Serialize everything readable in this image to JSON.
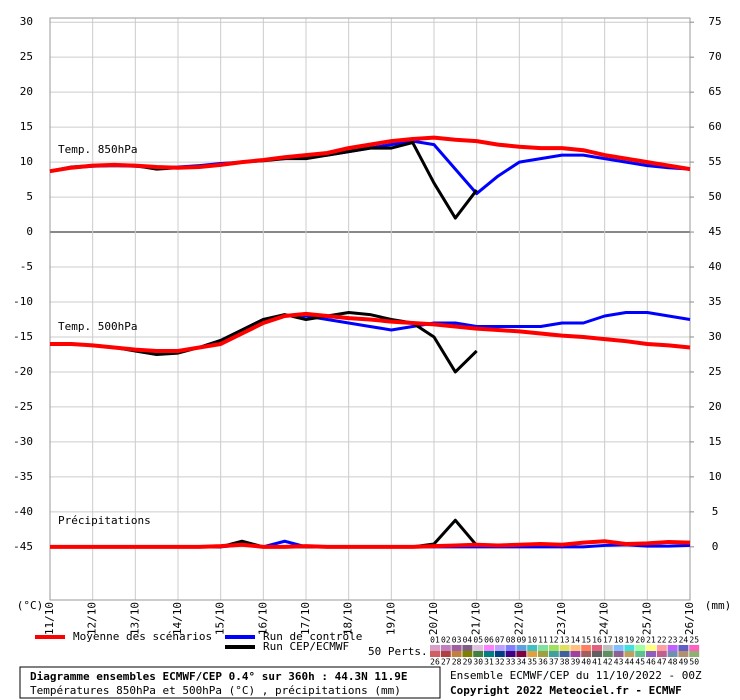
{
  "chart_data": {
    "type": "line",
    "x": [
      0,
      12,
      24,
      36,
      48,
      60,
      72,
      84,
      96,
      108,
      120,
      132,
      144,
      156,
      168,
      180,
      192,
      204,
      216,
      228,
      240,
      252,
      264,
      276,
      288,
      300,
      312,
      324,
      336,
      348,
      360
    ],
    "xlim": [
      0,
      360
    ],
    "xticks": [
      {
        "value": 0,
        "label": "11/10"
      },
      {
        "value": 24,
        "label": "12/10"
      },
      {
        "value": 48,
        "label": "13/10"
      },
      {
        "value": 72,
        "label": "14/10"
      },
      {
        "value": 96,
        "label": "15/10"
      },
      {
        "value": 120,
        "label": "16/10"
      },
      {
        "value": 144,
        "label": "17/10"
      },
      {
        "value": 168,
        "label": "18/10"
      },
      {
        "value": 192,
        "label": "19/10"
      },
      {
        "value": 216,
        "label": "20/10"
      },
      {
        "value": 240,
        "label": "21/10"
      },
      {
        "value": 264,
        "label": "22/10"
      },
      {
        "value": 288,
        "label": "23/10"
      },
      {
        "value": 312,
        "label": "24/10"
      },
      {
        "value": 336,
        "label": "25/10"
      },
      {
        "value": 360,
        "label": "26/10"
      }
    ],
    "ylim": [
      -52.6,
      30.6
    ],
    "yticks": [
      30,
      25,
      20,
      15,
      10,
      5,
      0,
      -5,
      -10,
      -15,
      -20,
      -25,
      -30,
      -35,
      -40,
      -45
    ],
    "y2lim": [
      -7.6,
      75.6
    ],
    "y2ticks": [
      75,
      70,
      65,
      60,
      55,
      50,
      45,
      40,
      35,
      30,
      25,
      20,
      15,
      10,
      5,
      0
    ],
    "y_label": "(°C)",
    "y2_label": "(mm)",
    "grid": true,
    "annotations": [
      "Temp. 850hPa",
      "Temp. 500hPa",
      "Précipitations"
    ],
    "series": [
      {
        "name": "Moyenne des scénarios",
        "color": "#ff0000",
        "temp850": [
          8.7,
          9.2,
          9.5,
          9.6,
          9.5,
          9.3,
          9.2,
          9.3,
          9.6,
          10,
          10.3,
          10.7,
          11,
          11.3,
          12,
          12.5,
          13,
          13.3,
          13.5,
          13.2,
          13,
          12.5,
          12.2,
          12,
          12,
          11.7,
          11,
          10.5,
          10,
          9.5,
          9
        ],
        "temp500": [
          -16,
          -16,
          -16.2,
          -16.5,
          -16.8,
          -17,
          -17,
          -16.5,
          -16,
          -14.5,
          -13,
          -12,
          -11.7,
          -12,
          -12.3,
          -12.5,
          -12.8,
          -13,
          -13.2,
          -13.5,
          -13.8,
          -14,
          -14.2,
          -14.5,
          -14.8,
          -15,
          -15.3,
          -15.6,
          -16,
          -16.2,
          -16.5
        ],
        "precip": [
          0,
          0,
          0,
          0,
          0,
          0,
          0,
          0,
          0.1,
          0.3,
          0,
          0,
          0.1,
          0,
          0,
          0,
          0,
          0,
          0.1,
          0.2,
          0.3,
          0.2,
          0.3,
          0.4,
          0.3,
          0.6,
          0.8,
          0.4,
          0.5,
          0.7,
          0.6
        ]
      },
      {
        "name": "Run de contrôle",
        "color": "#0000ff",
        "temp850": [
          8.7,
          9.2,
          9.4,
          9.5,
          9.4,
          9.2,
          9.3,
          9.5,
          9.8,
          10,
          10.3,
          10.5,
          10.8,
          11,
          11.5,
          12,
          12.5,
          13,
          12.5,
          9,
          5.5,
          8,
          10,
          10.5,
          11,
          11,
          10.5,
          10,
          9.5,
          9.2,
          9
        ],
        "temp500": [
          -16,
          -16,
          -16.2,
          -16.5,
          -16.8,
          -17,
          -17,
          -16.5,
          -15.5,
          -14,
          -12.5,
          -12,
          -12,
          -12.5,
          -13,
          -13.5,
          -14,
          -13.5,
          -13,
          -13,
          -13.5,
          -13.5,
          -13.5,
          -13.5,
          -13,
          -13,
          -12,
          -11.5,
          -11.5,
          -12,
          -12.5
        ],
        "precip": [
          0,
          0,
          0,
          0,
          0,
          0,
          0,
          0,
          0,
          0.3,
          0,
          0.8,
          0,
          0,
          0,
          0,
          0,
          0,
          0,
          0,
          0,
          0,
          0,
          0,
          0,
          0,
          0.2,
          0.3,
          0.1,
          0.1,
          0.2
        ]
      },
      {
        "name": "Run CEP/ECMWF",
        "color": "#000000",
        "temp850": [
          8.7,
          9.3,
          9.5,
          9.5,
          9.5,
          9,
          9.2,
          9.4,
          9.6,
          10,
          10.2,
          10.5,
          10.5,
          11,
          11.5,
          12,
          12,
          12.8,
          7,
          2,
          6,
          null,
          null,
          null,
          null,
          null,
          null,
          null,
          null,
          null,
          null
        ],
        "temp500": [
          -16,
          -16,
          -16.2,
          -16.5,
          -17,
          -17.5,
          -17.3,
          -16.5,
          -15.5,
          -14,
          -12.5,
          -11.8,
          -12.5,
          -12,
          -11.5,
          -11.8,
          -12.5,
          -13,
          -15,
          -20,
          -17,
          null,
          null,
          null,
          null,
          null,
          null,
          null,
          null,
          null,
          null
        ],
        "precip": [
          0,
          0,
          0,
          0,
          0,
          0,
          0,
          0,
          0,
          0.8,
          0,
          0,
          0,
          0,
          0,
          0,
          0,
          0,
          0.4,
          3.8,
          0.2,
          null,
          null,
          null,
          null,
          null,
          null,
          null,
          null,
          null,
          null
        ]
      }
    ],
    "perturbations_label": "50 Perts.",
    "perturbations": [
      {
        "label": "01",
        "color": "#d8a0c8"
      },
      {
        "label": "02",
        "color": "#c080c0"
      },
      {
        "label": "03",
        "color": "#a060a0"
      },
      {
        "label": "04",
        "color": "#806080"
      },
      {
        "label": "05",
        "color": "#e0c0e0"
      },
      {
        "label": "06",
        "color": "#ff80ff"
      },
      {
        "label": "07",
        "color": "#c0a0ff"
      },
      {
        "label": "08",
        "color": "#8080ff"
      },
      {
        "label": "09",
        "color": "#60a0e0"
      },
      {
        "label": "10",
        "color": "#40c0c0"
      },
      {
        "label": "11",
        "color": "#80e0a0"
      },
      {
        "label": "12",
        "color": "#a0e060"
      },
      {
        "label": "13",
        "color": "#e0e060"
      },
      {
        "label": "14",
        "color": "#ffc080"
      },
      {
        "label": "15",
        "color": "#ff8060"
      },
      {
        "label": "16",
        "color": "#e06080"
      },
      {
        "label": "17",
        "color": "#c0c0c0"
      },
      {
        "label": "18",
        "color": "#80c0ff"
      },
      {
        "label": "19",
        "color": "#40e0e0"
      },
      {
        "label": "20",
        "color": "#a0ffa0"
      },
      {
        "label": "21",
        "color": "#ffff80"
      },
      {
        "label": "22",
        "color": "#ffa0a0"
      },
      {
        "label": "23",
        "color": "#c060ff"
      },
      {
        "label": "24",
        "color": "#6060c0"
      },
      {
        "label": "25",
        "color": "#ff60c0"
      },
      {
        "label": "26",
        "color": "#d06060"
      },
      {
        "label": "27",
        "color": "#b04040"
      },
      {
        "label": "28",
        "color": "#c08040"
      },
      {
        "label": "29",
        "color": "#808000"
      },
      {
        "label": "30",
        "color": "#408040"
      },
      {
        "label": "31",
        "color": "#008080"
      },
      {
        "label": "32",
        "color": "#004080"
      },
      {
        "label": "33",
        "color": "#400080"
      },
      {
        "label": "34",
        "color": "#800040"
      },
      {
        "label": "35",
        "color": "#e0a040"
      },
      {
        "label": "36",
        "color": "#a0a040"
      },
      {
        "label": "37",
        "color": "#40a0a0"
      },
      {
        "label": "38",
        "color": "#4060a0"
      },
      {
        "label": "39",
        "color": "#a040a0"
      },
      {
        "label": "40",
        "color": "#a06060"
      },
      {
        "label": "41",
        "color": "#606060"
      },
      {
        "label": "42",
        "color": "#609060"
      },
      {
        "label": "43",
        "color": "#906090"
      },
      {
        "label": "44",
        "color": "#c0a060"
      },
      {
        "label": "45",
        "color": "#60c090"
      },
      {
        "label": "46",
        "color": "#9060c0"
      },
      {
        "label": "47",
        "color": "#c06090"
      },
      {
        "label": "48",
        "color": "#7090b0"
      },
      {
        "label": "49",
        "color": "#b09070"
      },
      {
        "label": "50",
        "color": "#90b070"
      }
    ]
  },
  "footer": {
    "title": "Diagramme ensembles ECMWF/CEP 0.4° sur 360h : 44.3N 11.9E",
    "subtitle": "Températures 850hPa et 500hPa (°C) , précipitations (mm)",
    "run": "Ensemble ECMWF/CEP du 11/10/2022 - 00Z",
    "copyright": "Copyright 2022 Meteociel.fr - ECMWF"
  }
}
